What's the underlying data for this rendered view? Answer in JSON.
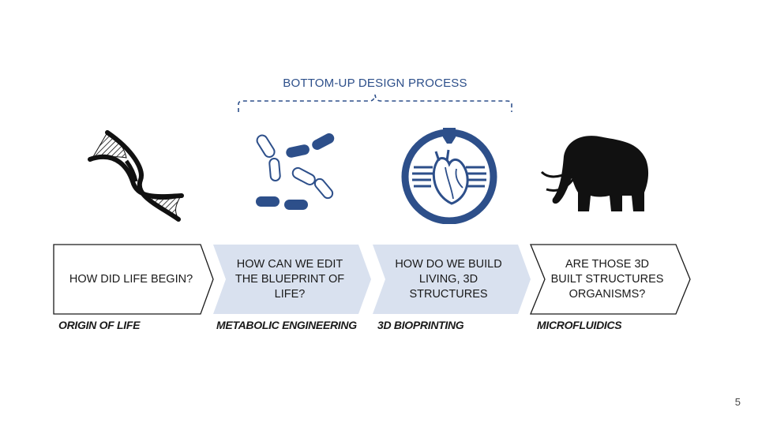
{
  "process_title": "BOTTOM-UP DESIGN PROCESS",
  "steps": [
    {
      "question": "HOW DID LIFE BEGIN?",
      "caption": "ORIGIN OF LIFE",
      "icon": "dna-icon"
    },
    {
      "question": "HOW CAN WE EDIT THE BLUEPRINT OF LIFE?",
      "caption": "METABOLIC ENGINEERING",
      "icon": "bacteria-icon"
    },
    {
      "question": "HOW DO WE BUILD LIVING, 3D STRUCTURES",
      "caption": "3D BIOPRINTING",
      "icon": "bioprinted-heart-icon"
    },
    {
      "question": "ARE THOSE 3D BUILT STRUCTURES ORGANISMS?",
      "caption": "MICROFLUIDICS",
      "icon": "mammoth-icon"
    }
  ],
  "page_number": "5",
  "colors": {
    "accent": "#2d4f8a",
    "chevron_highlight": "#d9e1ef",
    "chevron_outline": "#1a1a1a"
  }
}
